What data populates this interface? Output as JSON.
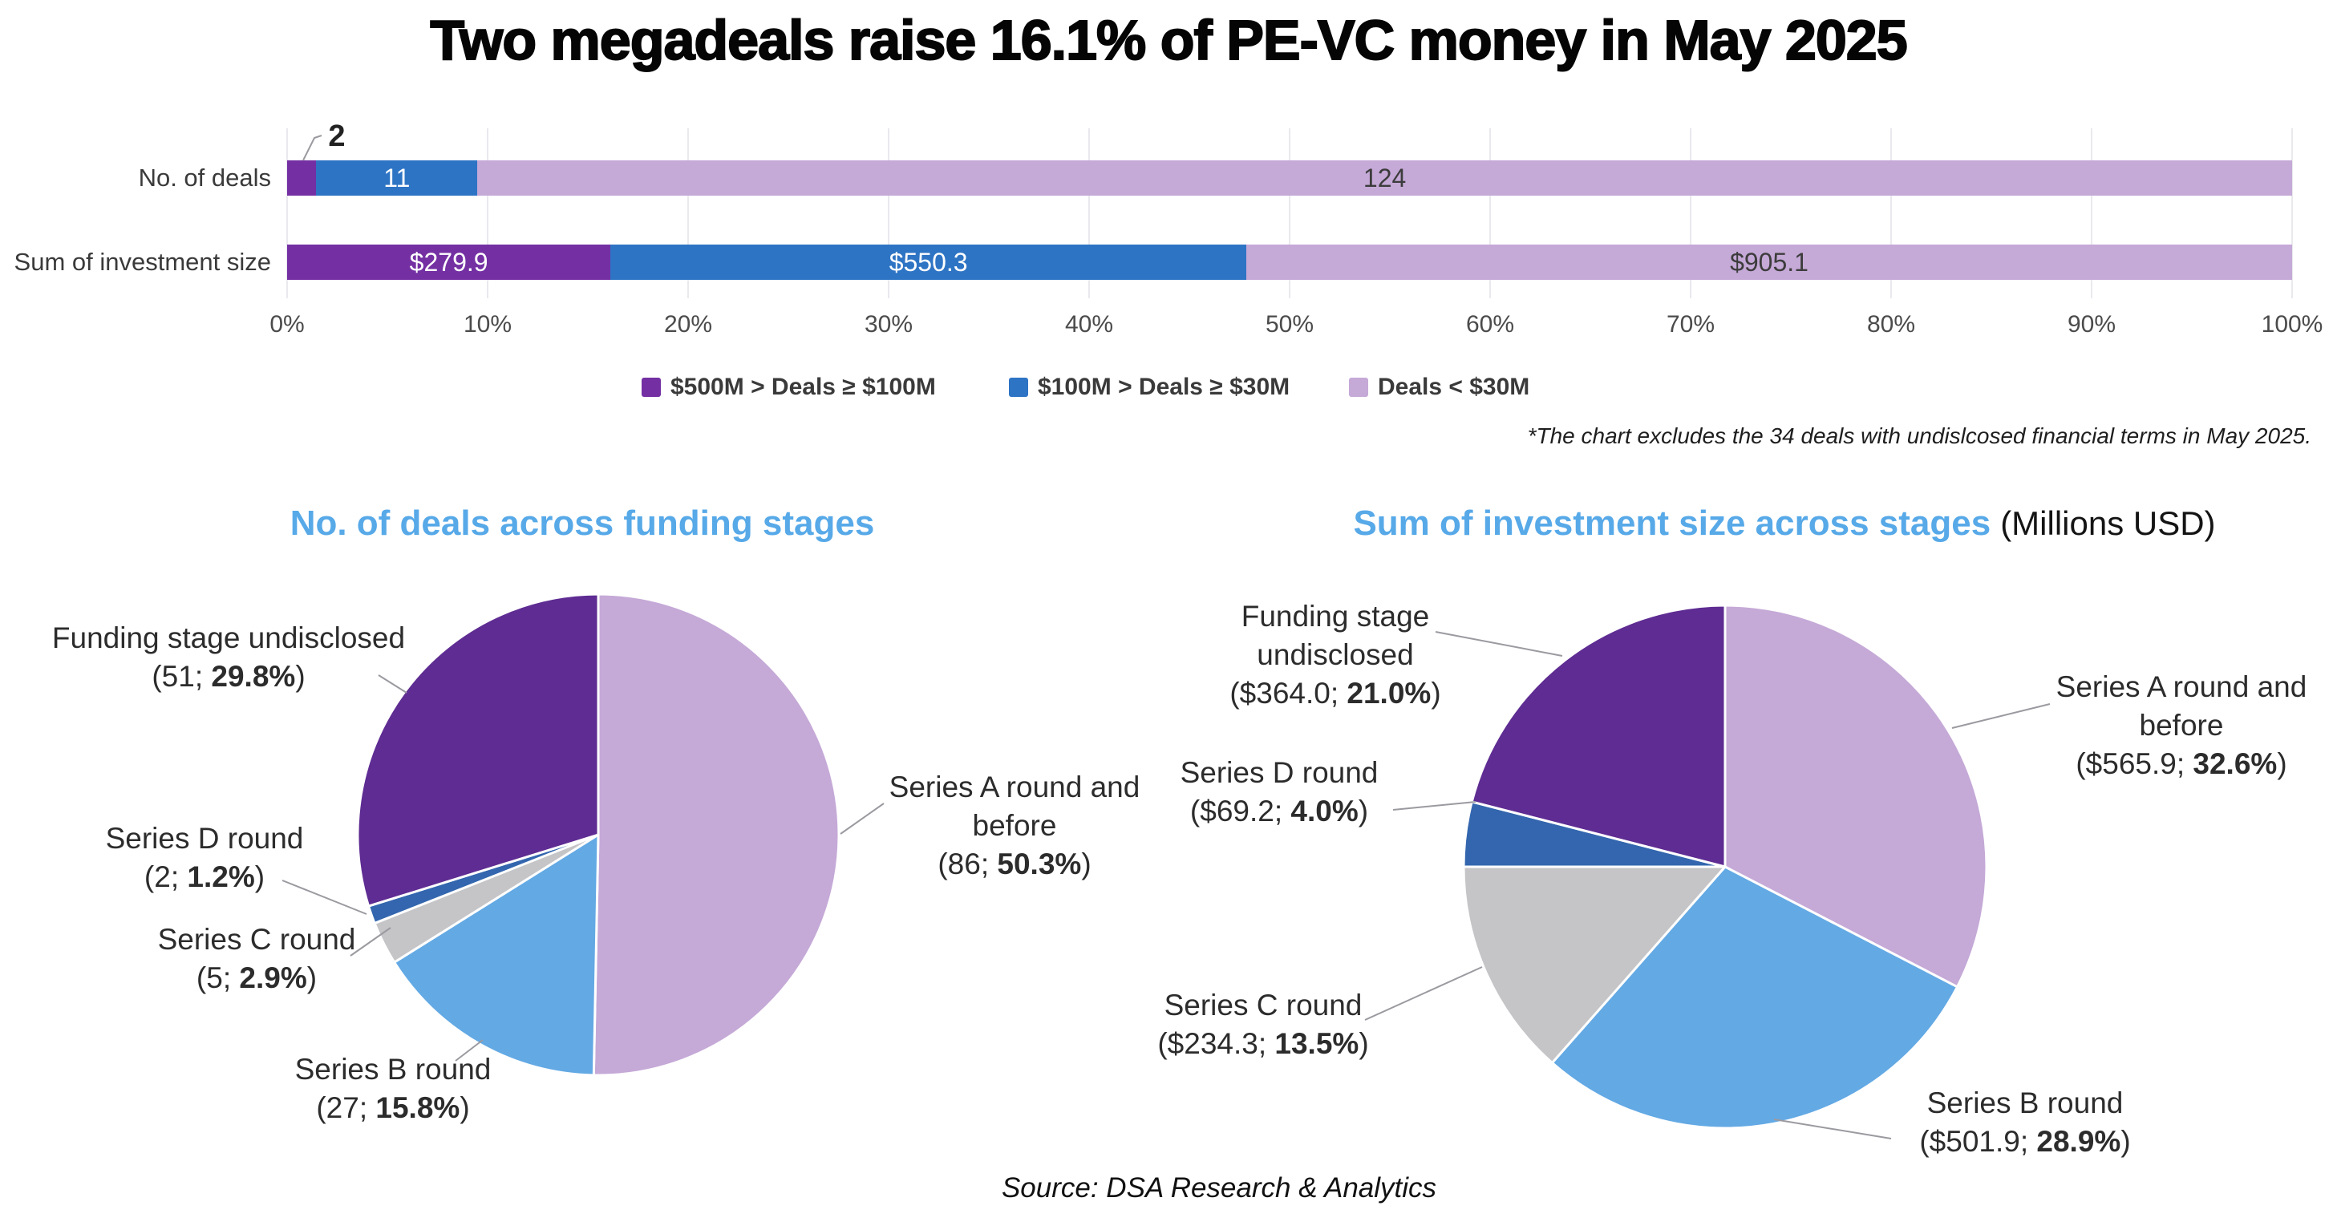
{
  "title": "Two megadeals raise 16.1% of PE-VC money in May 2025",
  "footnote": "*The chart excludes the 34 deals with undislcosed financial terms in May 2025.",
  "source": "Source: DSA Research & Analytics",
  "colors": {
    "bar_purple": "#7430a3",
    "bar_blue": "#2e74c4",
    "lavender": "#c5a9d7",
    "pie_purple": "#5e2c92",
    "pie_blue": "#3366ae",
    "pie_light_blue": "#63a9e4",
    "pie_grey": "#c5c5c8",
    "title_blue": "#57a9e8",
    "grid": "#e9e9ee"
  },
  "chart_data": [
    {
      "type": "bar",
      "variant": "stacked-100pct-horizontal",
      "categories": [
        "No. of deals",
        "Sum of investment size"
      ],
      "series": [
        {
          "name": "$500M > Deals ≥ $100M",
          "color": "bar_purple",
          "values": [
            2,
            279.9
          ],
          "labels": [
            "2",
            "$279.9"
          ]
        },
        {
          "name": "$100M > Deals ≥ $30M",
          "color": "bar_blue",
          "values": [
            11,
            550.3
          ],
          "labels": [
            "11",
            "$550.3"
          ]
        },
        {
          "name": "Deals < $30M",
          "color": "lavender",
          "values": [
            124,
            905.1
          ],
          "labels": [
            "124",
            "$905.1"
          ]
        }
      ],
      "x_ticks": [
        "0%",
        "10%",
        "20%",
        "30%",
        "40%",
        "50%",
        "60%",
        "70%",
        "80%",
        "90%",
        "100%"
      ],
      "xlim": [
        0,
        100
      ],
      "grid": true,
      "legend_position": "bottom"
    },
    {
      "type": "pie",
      "title": "No. of deals across funding stages",
      "unit_label": "",
      "slices": [
        {
          "name": "Series A round and before",
          "value": 86,
          "pct": 50.3,
          "open": "(86; ",
          "pct_label": "50.3%",
          "close": ")",
          "color": "lavender"
        },
        {
          "name": "Series B round",
          "value": 27,
          "pct": 15.8,
          "open": "(27; ",
          "pct_label": "15.8%",
          "close": ")",
          "color": "pie_light_blue"
        },
        {
          "name": "Series C round",
          "value": 5,
          "pct": 2.9,
          "open": "(5; ",
          "pct_label": "2.9%",
          "close": ")",
          "color": "pie_grey"
        },
        {
          "name": "Series D round",
          "value": 2,
          "pct": 1.2,
          "open": "(2; ",
          "pct_label": "1.2%",
          "close": ")",
          "color": "pie_blue"
        },
        {
          "name": "Funding stage undisclosed",
          "value": 51,
          "pct": 29.8,
          "open": "(51; ",
          "pct_label": "29.8%",
          "close": ")",
          "color": "pie_purple"
        }
      ]
    },
    {
      "type": "pie",
      "title": "Sum of investment size across stages",
      "unit_label": "(Millions USD)",
      "slices": [
        {
          "name": "Series A round and before",
          "value": 565.9,
          "pct": 32.6,
          "open": "($565.9; ",
          "pct_label": "32.6%",
          "close": ")",
          "color": "lavender"
        },
        {
          "name": "Series B round",
          "value": 501.9,
          "pct": 28.9,
          "open": "($501.9; ",
          "pct_label": "28.9%",
          "close": ")",
          "color": "pie_light_blue"
        },
        {
          "name": "Series C round",
          "value": 234.3,
          "pct": 13.5,
          "open": "($234.3; ",
          "pct_label": "13.5%",
          "close": ")",
          "color": "pie_grey"
        },
        {
          "name": "Series D round",
          "value": 69.2,
          "pct": 4.0,
          "open": "($69.2; ",
          "pct_label": "4.0%",
          "close": ")",
          "color": "pie_blue"
        },
        {
          "name": "Funding stage undisclosed",
          "value": 364.0,
          "pct": 21.0,
          "open": "($364.0; ",
          "pct_label": "21.0%",
          "close": ")",
          "color": "pie_purple"
        }
      ]
    }
  ]
}
